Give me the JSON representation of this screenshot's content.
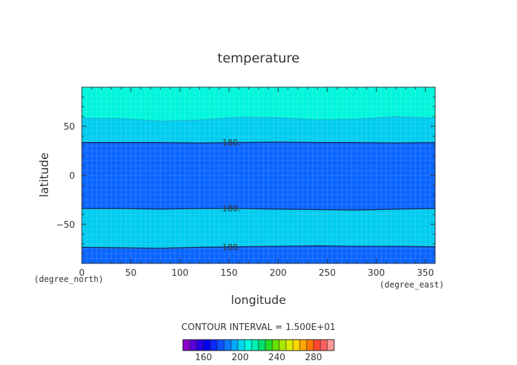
{
  "chart_data": {
    "type": "contour",
    "title": "temperature",
    "xlabel": "longitude",
    "ylabel": "latitude",
    "x_unit": "(degree_east)",
    "y_unit": "(degree_north)",
    "xlim": [
      0,
      360
    ],
    "ylim": [
      -90,
      90
    ],
    "x_ticks": [
      0,
      50,
      100,
      150,
      200,
      250,
      300,
      350
    ],
    "y_ticks": [
      -50,
      0,
      50
    ],
    "contour_interval_text": "CONTOUR INTERVAL = 1.500E+01",
    "colorbar": {
      "ticks": [
        160,
        200,
        240,
        280
      ],
      "colors": [
        "#8a00c8",
        "#5a00d8",
        "#2800e8",
        "#0000f0",
        "#0a28ff",
        "#0a50ff",
        "#0a78ff",
        "#00a8ff",
        "#00d8f0",
        "#00ffe0",
        "#00f0b0",
        "#00e070",
        "#22dd22",
        "#66e000",
        "#a8e600",
        "#dcec00",
        "#ffd800",
        "#ffa800",
        "#ff7800",
        "#ff4830",
        "#ff6060",
        "#ff9898"
      ]
    },
    "bands": [
      {
        "range": ">195",
        "color": "#00f5dc"
      },
      {
        "range": "180-195",
        "color": "#00ccf0"
      },
      {
        "range": "165-180",
        "color": "#0a64ff"
      },
      {
        "range": "180-195",
        "color": "#00ccf0"
      },
      {
        "range": "165-180",
        "color": "#0a64ff"
      }
    ],
    "boundaries": [
      {
        "level": 195,
        "labeled": false,
        "lat": [
          58.5,
          58,
          55.5,
          56.5,
          59.5,
          59,
          56.5,
          57.5,
          60,
          58.5
        ],
        "lon": [
          0,
          40,
          80,
          120,
          160,
          200,
          240,
          280,
          320,
          360
        ]
      },
      {
        "level": 180,
        "labeled": true,
        "label": "180.",
        "label_lon": 130,
        "lat": [
          33.5,
          33.5,
          33.5,
          33,
          33.5,
          34,
          33.5,
          33.5,
          33,
          33.5
        ],
        "lon": [
          0,
          40,
          80,
          120,
          160,
          200,
          240,
          280,
          320,
          360
        ]
      },
      {
        "level": 180,
        "labeled": true,
        "label": "180.",
        "label_lon": 130,
        "lat": [
          -34,
          -34,
          -34.5,
          -34,
          -34,
          -34.5,
          -35,
          -35.5,
          -34.5,
          -34
        ],
        "lon": [
          0,
          40,
          80,
          120,
          160,
          200,
          240,
          280,
          320,
          360
        ]
      },
      {
        "level": 180,
        "labeled": true,
        "label": "180.",
        "label_lon": 130,
        "lat": [
          -73.5,
          -74,
          -74.5,
          -73.5,
          -73,
          -72.5,
          -72,
          -72.5,
          -72.5,
          -73
        ],
        "lon": [
          0,
          40,
          80,
          120,
          160,
          200,
          240,
          280,
          320,
          360
        ]
      }
    ]
  }
}
